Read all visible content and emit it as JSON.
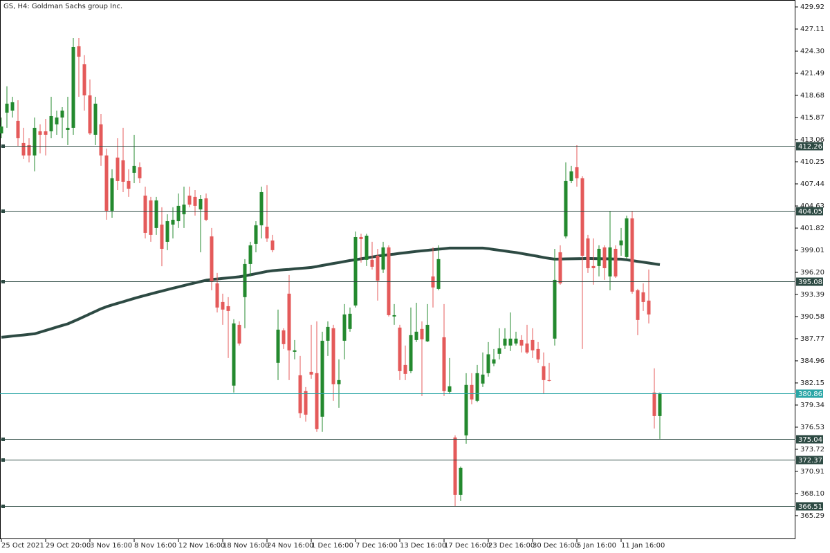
{
  "chart_data": {
    "type": "candlestick",
    "title": "GS, H4:  Goldman Sachs group Inc.",
    "categories": [
      "25 Oct 2021",
      null,
      null,
      null,
      null,
      null,
      null,
      null,
      "29 Oct 20:00",
      null,
      null,
      null,
      null,
      null,
      null,
      null,
      "3 Nov 16:00",
      null,
      null,
      null,
      null,
      null,
      null,
      null,
      "8 Nov 16:00",
      null,
      null,
      null,
      null,
      null,
      null,
      null,
      "12 Nov 16:00",
      null,
      null,
      null,
      null,
      null,
      null,
      null,
      "18 Nov 16:00",
      null,
      null,
      null,
      null,
      null,
      null,
      null,
      "24 Nov 16:00",
      null,
      null,
      null,
      null,
      null,
      null,
      null,
      "1 Dec 16:00",
      null,
      null,
      null,
      null,
      null,
      null,
      null,
      "7 Dec 16:00",
      null,
      null,
      null,
      null,
      null,
      null,
      null,
      "13 Dec 16:00",
      null,
      null,
      null,
      null,
      null,
      null,
      null,
      "17 Dec 16:00",
      null,
      null,
      null,
      null,
      null,
      null,
      null,
      "23 Dec 16:00",
      null,
      null,
      null,
      null,
      null,
      null,
      null,
      "30 Dec 16:00",
      null,
      null,
      null,
      null,
      null,
      null,
      null,
      "5 Jan 16:00",
      null,
      null,
      null,
      null,
      null,
      null,
      null,
      "11 Jan 16:00",
      null,
      null,
      null,
      null,
      null,
      null,
      null
    ],
    "open": [
      413.85,
      416.49,
      416.75,
      415.44,
      412.63,
      412.36,
      411.05,
      414.12,
      414.12,
      414.12,
      415.0,
      415.87,
      414.29,
      414.56,
      424.92,
      422.63,
      418.68,
      413.68,
      415.0,
      411.05,
      404.02,
      410.78,
      410.43,
      407.8,
      408.85,
      409.55,
      405.95,
      405.34,
      401.83,
      402.27,
      400.07,
      402.27,
      402.7,
      403.58,
      405.95,
      405.78,
      404.2,
      405.6,
      400.77,
      394.8,
      392.43,
      391.9,
      381.81,
      389.53,
      393.05,
      397.26,
      399.81,
      402.18,
      402.0,
      400.25,
      384.71,
      388.83,
      393.49,
      386.11,
      383.12,
      381.11,
      383.56,
      383.39,
      377.86,
      387.51,
      389.1,
      381.98,
      387.51,
      389.01,
      391.99,
      400.68,
      397.79,
      397.79,
      398.31,
      396.56,
      399.37,
      390.59,
      389.18,
      384.44,
      383.65,
      387.6,
      389.01,
      387.43,
      395.68,
      394.1,
      387.95,
      381.02,
      375.22,
      367.93,
      375.49,
      381.9,
      379.88,
      382.07,
      383.39,
      384.62,
      385.85,
      386.9,
      386.9,
      387.16,
      387.6,
      387.16,
      387.6,
      386.46,
      384.27,
      382.51,
      387.78,
      398.75,
      400.77,
      407.8,
      409.55,
      408.15,
      400.51,
      397.0,
      397.0,
      399.37,
      395.68,
      399.19,
      399.63,
      398.14,
      403.06,
      393.92,
      393.66,
      392.61,
      380.93,
      377.94
    ],
    "high": [
      415.87,
      419.83,
      418.51,
      418.07,
      414.56,
      413.24,
      415.87,
      415.0,
      415.7,
      418.51,
      416.75,
      417.19,
      418.51,
      425.97,
      425.97,
      423.78,
      420.7,
      418.51,
      416.31,
      411.92,
      409.29,
      413.24,
      414.56,
      409.29,
      413.68,
      410.17,
      407.09,
      405.78,
      405.78,
      404.46,
      403.58,
      404.46,
      406.22,
      407.09,
      407.09,
      406.65,
      406.04,
      406.22,
      401.83,
      396.12,
      393.49,
      393.05,
      390.24,
      389.97,
      397.88,
      400.07,
      402.7,
      407.09,
      407.27,
      400.95,
      391.47,
      389.1,
      395.86,
      387.6,
      385.58,
      381.63,
      389.53,
      389.97,
      388.66,
      389.97,
      389.53,
      385.14,
      392.17,
      391.73,
      401.39,
      401.12,
      401.12,
      400.07,
      399.19,
      400.07,
      399.63,
      392.17,
      389.53,
      386.9,
      391.73,
      392.34,
      389.97,
      392.17,
      399.37,
      399.63,
      392.17,
      385.32,
      375.49,
      371.53,
      383.39,
      383.39,
      384.44,
      386.02,
      387.34,
      386.46,
      389.1,
      389.1,
      391.11,
      388.66,
      388.22,
      389.53,
      389.1,
      387.34,
      386.02,
      384.71,
      399.19,
      399.63,
      410.17,
      409.73,
      412.36,
      408.41,
      400.95,
      400.51,
      399.63,
      399.63,
      404.02,
      399.63,
      401.83,
      403.41,
      404.02,
      394.1,
      394.8,
      396.56,
      384.0,
      380.93
    ],
    "low": [
      413.24,
      414.56,
      415.87,
      412.19,
      410.61,
      410.17,
      409.03,
      411.31,
      411.05,
      413.24,
      413.68,
      413.24,
      412.36,
      413.68,
      418.51,
      416.75,
      413.68,
      412.36,
      409.73,
      402.88,
      403.14,
      406.65,
      406.39,
      405.78,
      407.53,
      407.53,
      400.51,
      400.07,
      400.95,
      396.98,
      399.02,
      400.51,
      401.83,
      401.83,
      404.46,
      403.41,
      398.75,
      402.7,
      393.92,
      391.11,
      389.53,
      385.32,
      380.93,
      386.9,
      389.1,
      395.68,
      398.75,
      400.51,
      400.07,
      398.75,
      382.51,
      386.46,
      382.51,
      385.14,
      377.68,
      377.24,
      382.69,
      375.93,
      375.93,
      385.58,
      379.88,
      379.0,
      385.14,
      388.66,
      391.73,
      397.44,
      397.0,
      396.56,
      392.61,
      396.12,
      390.59,
      389.53,
      382.51,
      382.51,
      383.39,
      387.34,
      380.49,
      387.34,
      391.73,
      393.92,
      380.49,
      380.75,
      366.44,
      367.14,
      374.43,
      379.44,
      379.7,
      381.63,
      382.95,
      384.27,
      385.14,
      386.46,
      386.2,
      386.9,
      386.02,
      385.85,
      385.32,
      384.71,
      380.75,
      382.33,
      386.9,
      394.63,
      400.51,
      407.53,
      407.09,
      386.46,
      396.12,
      394.63,
      395.68,
      395.24,
      393.92,
      395.5,
      398.31,
      397.88,
      393.49,
      388.22,
      391.29,
      389.71,
      376.36,
      375.04
    ],
    "close": [
      414.73,
      417.63,
      417.81,
      413.24,
      411.05,
      411.05,
      414.56,
      413.68,
      413.68,
      416.05,
      415.87,
      416.75,
      414.56,
      424.83,
      423.6,
      418.68,
      413.85,
      417.63,
      411.05,
      404.02,
      408.15,
      407.8,
      407.71,
      406.83,
      409.73,
      408.15,
      401.21,
      400.95,
      405.34,
      399.19,
      402.7,
      402.88,
      404.64,
      404.81,
      404.81,
      404.64,
      405.51,
      402.88,
      394.98,
      391.73,
      391.47,
      391.29,
      389.71,
      387.16,
      397.26,
      399.63,
      402.18,
      406.39,
      400.51,
      399.02,
      388.92,
      387.08,
      386.29,
      386.29,
      378.3,
      378.12,
      383.21,
      376.28,
      387.51,
      389.27,
      381.98,
      382.51,
      390.85,
      390.94,
      400.68,
      400.42,
      400.86,
      396.91,
      395.15,
      399.37,
      390.76,
      390.76,
      383.65,
      383.3,
      388.22,
      388.66,
      387.69,
      389.53,
      394.28,
      397.88,
      381.11,
      381.72,
      367.93,
      371.36,
      381.9,
      380.05,
      383.39,
      383.21,
      385.79,
      385.14,
      386.55,
      387.78,
      387.78,
      387.78,
      386.9,
      386.02,
      386.29,
      385.14,
      382.51,
      382.42,
      395.24,
      394.8,
      407.8,
      409.03,
      408.15,
      398.31,
      396.73,
      396.73,
      399.19,
      396.73,
      399.37,
      395.68,
      400.25,
      403.06,
      393.75,
      390.15,
      392.43,
      390.85,
      377.94,
      380.86
    ],
    "up_color": "#23892e",
    "down_color": "#e45a5a",
    "ma": {
      "color": "#2d4a43",
      "values": [
        387.95,
        388.02,
        388.1,
        388.17,
        388.24,
        388.32,
        388.39,
        388.6,
        388.81,
        389.02,
        389.24,
        389.45,
        389.66,
        389.96,
        390.27,
        390.6,
        390.92,
        391.25,
        391.57,
        391.83,
        392.05,
        392.26,
        392.47,
        392.68,
        392.89,
        393.09,
        393.27,
        393.46,
        393.64,
        393.82,
        394.0,
        394.19,
        394.35,
        394.52,
        394.7,
        394.86,
        395.03,
        395.2,
        395.29,
        395.36,
        395.43,
        395.5,
        395.57,
        395.64,
        395.75,
        395.89,
        396.03,
        396.17,
        396.31,
        396.41,
        396.47,
        396.53,
        396.58,
        396.65,
        396.71,
        396.76,
        396.82,
        396.94,
        397.08,
        397.2,
        397.33,
        397.45,
        397.58,
        397.7,
        397.8,
        397.92,
        398.03,
        398.15,
        398.26,
        398.36,
        398.44,
        398.52,
        398.61,
        398.69,
        398.78,
        398.86,
        398.93,
        399.0,
        399.07,
        399.14,
        399.21,
        399.28,
        399.28,
        399.28,
        399.28,
        399.28,
        399.28,
        399.28,
        399.21,
        399.1,
        399.01,
        398.91,
        398.81,
        398.72,
        398.6,
        398.47,
        398.35,
        398.23,
        398.09,
        397.97,
        397.88,
        397.89,
        397.91,
        397.92,
        397.94,
        397.95,
        397.96,
        397.95,
        397.94,
        397.92,
        397.91,
        397.89,
        397.88,
        397.8,
        397.69,
        397.59,
        397.49,
        397.38,
        397.28,
        397.17
      ]
    },
    "levels": {
      "color": "#2d4a43",
      "values": [
        412.26,
        404.05,
        395.08,
        375.04,
        372.37,
        366.51
      ]
    },
    "current_price": {
      "value": 380.86,
      "color": "#2aa6a6"
    },
    "ylim": [
      362.3,
      430.8
    ],
    "yticks": [
      429.92,
      427.11,
      {
        "value": 424.3,
        "label": "424.30"
      },
      421.49,
      418.68,
      415.87,
      413.06,
      410.25,
      407.44,
      404.63,
      401.82,
      399.01,
      {
        "value": 396.2,
        "label": "396.20"
      },
      393.39,
      390.58,
      387.77,
      384.96,
      382.15,
      379.34,
      376.53,
      373.72,
      370.91,
      {
        "value": 368.1,
        "label": "368.10"
      },
      365.29
    ]
  }
}
